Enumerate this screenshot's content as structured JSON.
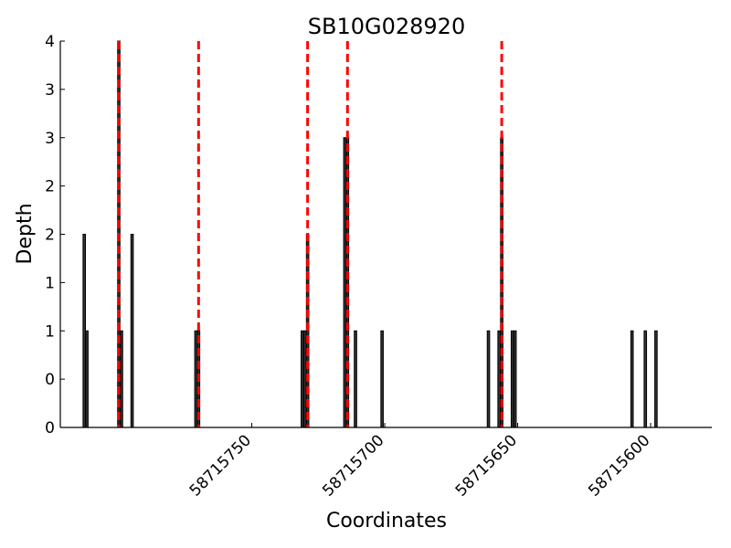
{
  "chart_data": {
    "type": "bar",
    "title": "SB10G028920",
    "xlabel": "Coordinates",
    "ylabel": "Depth",
    "xlim": [
      58715822,
      58715577
    ],
    "x_reversed": true,
    "ylim": [
      0,
      4
    ],
    "y_ticks": [
      {
        "value": 0,
        "label": "0"
      },
      {
        "value": 0.5,
        "label": "0"
      },
      {
        "value": 1,
        "label": "1"
      },
      {
        "value": 1.5,
        "label": "1"
      },
      {
        "value": 2,
        "label": "2"
      },
      {
        "value": 2.5,
        "label": "2"
      },
      {
        "value": 3,
        "label": "3"
      },
      {
        "value": 3.5,
        "label": "3"
      },
      {
        "value": 4,
        "label": "4"
      }
    ],
    "x_ticks": [
      {
        "value": 58715750,
        "label": "58715750"
      },
      {
        "value": 58715700,
        "label": "58715700"
      },
      {
        "value": 58715650,
        "label": "58715650"
      },
      {
        "value": 58715600,
        "label": "58715600"
      }
    ],
    "points": [
      {
        "x": 58715813,
        "y": 2
      },
      {
        "x": 58715812,
        "y": 1
      },
      {
        "x": 58715800,
        "y": 4
      },
      {
        "x": 58715799,
        "y": 1
      },
      {
        "x": 58715795,
        "y": 2
      },
      {
        "x": 58715771,
        "y": 1
      },
      {
        "x": 58715770,
        "y": 1
      },
      {
        "x": 58715731,
        "y": 1
      },
      {
        "x": 58715730,
        "y": 1
      },
      {
        "x": 58715729,
        "y": 2
      },
      {
        "x": 58715715,
        "y": 3
      },
      {
        "x": 58715714,
        "y": 3
      },
      {
        "x": 58715711,
        "y": 1
      },
      {
        "x": 58715701,
        "y": 1
      },
      {
        "x": 58715661,
        "y": 1
      },
      {
        "x": 58715657,
        "y": 1
      },
      {
        "x": 58715656,
        "y": 3
      },
      {
        "x": 58715652,
        "y": 1
      },
      {
        "x": 58715651,
        "y": 1
      },
      {
        "x": 58715607,
        "y": 1
      },
      {
        "x": 58715602,
        "y": 1
      },
      {
        "x": 58715598,
        "y": 1
      }
    ],
    "markers": [
      58715800,
      58715770,
      58715729,
      58715714,
      58715656
    ],
    "grid": false,
    "colors": {
      "bar_fill": "#333333",
      "bar_edge": "#000000",
      "marker": "#ff0000"
    }
  }
}
